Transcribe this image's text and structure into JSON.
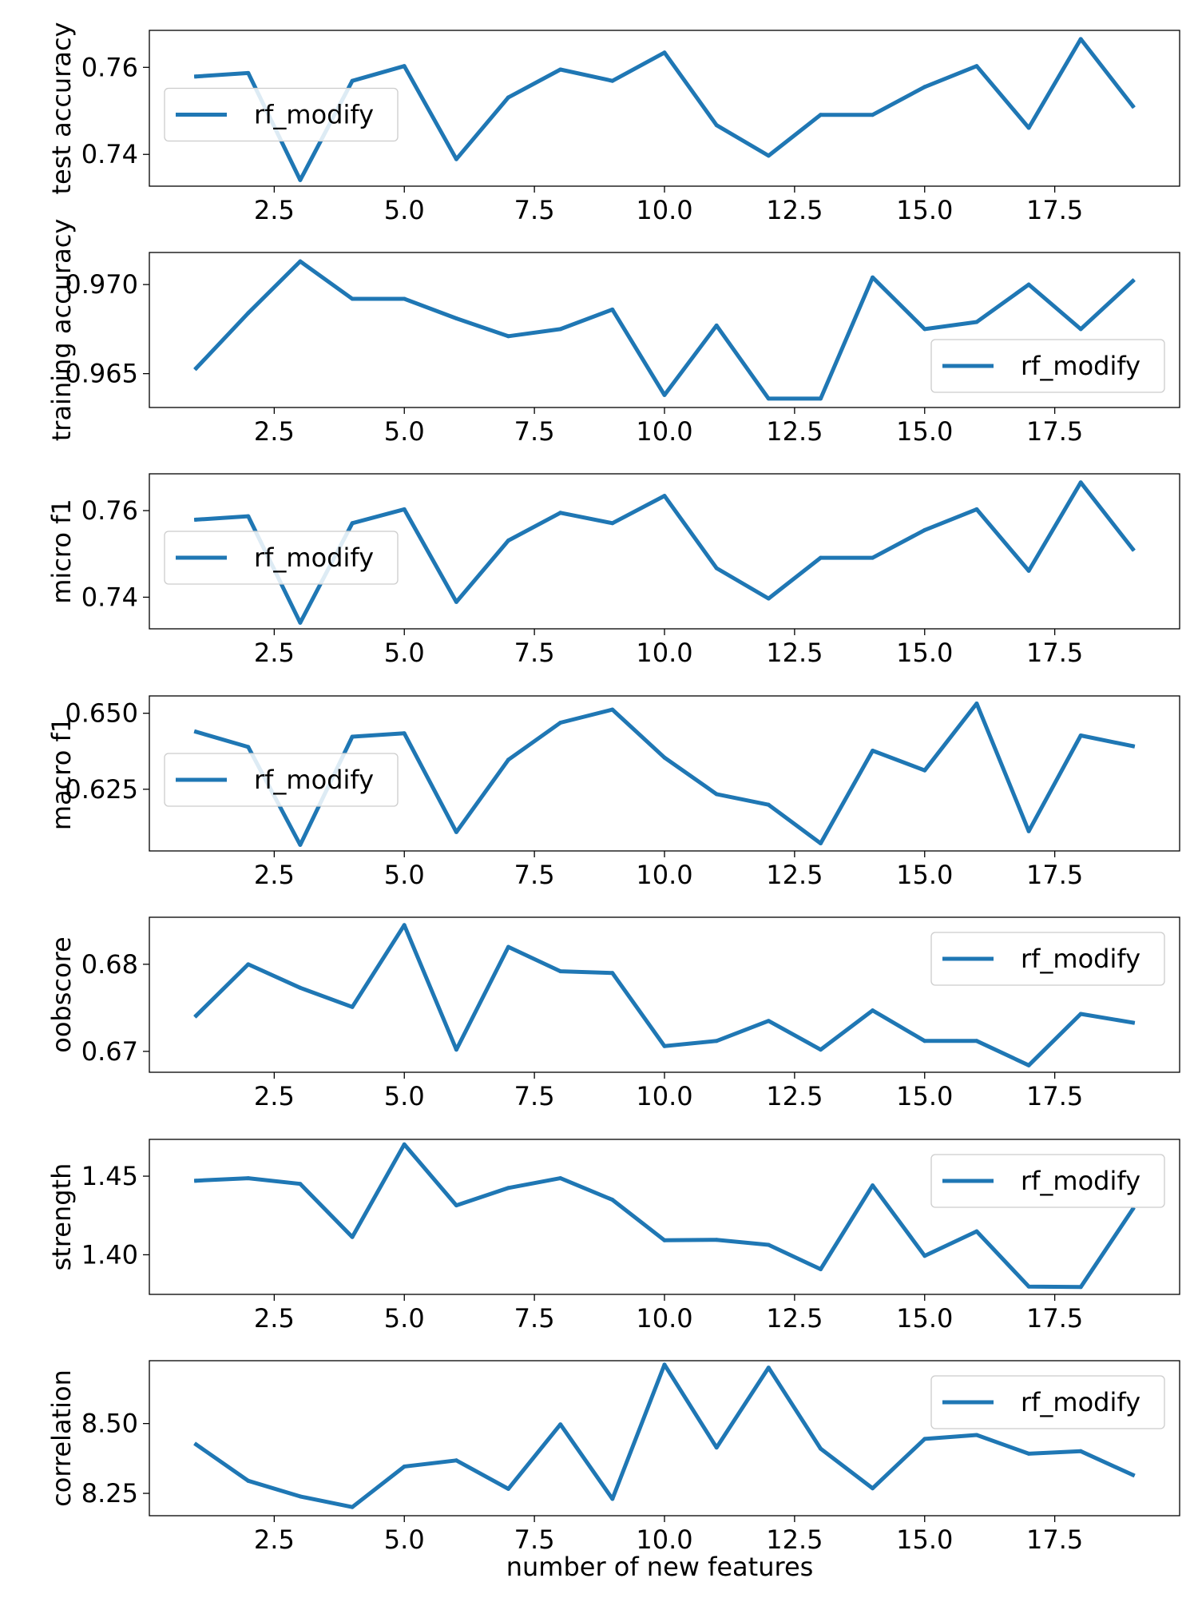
{
  "figure": {
    "xlabel": "number of new features",
    "x_ticks": [
      "2.5",
      "5.0",
      "7.5",
      "10.0",
      "12.5",
      "15.0",
      "17.5"
    ]
  },
  "colors": {
    "series": "#1f77b4",
    "axes": "#000000",
    "legend_border": "#cccccc"
  },
  "chart_data": [
    {
      "type": "line",
      "ylabel": "test accuracy",
      "xlim": [
        0.1,
        19.9
      ],
      "ylim": [
        0.7327,
        0.7685
      ],
      "yticks": [
        0.74,
        0.76
      ],
      "ytick_labels": [
        "0.74",
        "0.76"
      ],
      "legend_position": "center-left",
      "series": [
        {
          "name": "rf_modify",
          "x": [
            1,
            2,
            3,
            4,
            5,
            6,
            7,
            8,
            9,
            10,
            11,
            12,
            13,
            14,
            15,
            16,
            17,
            18,
            19
          ],
          "values": [
            0.7579,
            0.7587,
            0.7341,
            0.7569,
            0.7603,
            0.7389,
            0.7531,
            0.7595,
            0.7569,
            0.7634,
            0.7467,
            0.7397,
            0.7491,
            0.7491,
            0.7555,
            0.7603,
            0.7461,
            0.7665,
            0.7511
          ]
        }
      ]
    },
    {
      "type": "line",
      "ylabel": "training accuracy",
      "xlim": [
        0.1,
        19.9
      ],
      "ylim": [
        0.9631,
        0.9718
      ],
      "yticks": [
        0.965,
        0.97
      ],
      "ytick_labels": [
        "0.965",
        "0.970"
      ],
      "legend_position": "lower-right",
      "series": [
        {
          "name": "rf_modify",
          "x": [
            1,
            2,
            3,
            4,
            5,
            6,
            7,
            8,
            9,
            10,
            11,
            12,
            13,
            14,
            15,
            16,
            17,
            18,
            19
          ],
          "values": [
            0.9653,
            0.9684,
            0.9713,
            0.9692,
            0.9692,
            0.9681,
            0.9671,
            0.9675,
            0.9686,
            0.9638,
            0.9677,
            0.9636,
            0.9636,
            0.9704,
            0.9675,
            0.9679,
            0.97,
            0.9675,
            0.9702
          ]
        }
      ]
    },
    {
      "type": "line",
      "ylabel": "micro f1",
      "xlim": [
        0.1,
        19.9
      ],
      "ylim": [
        0.7327,
        0.7685
      ],
      "yticks": [
        0.74,
        0.76
      ],
      "ytick_labels": [
        "0.74",
        "0.76"
      ],
      "legend_position": "center-left",
      "series": [
        {
          "name": "rf_modify",
          "x": [
            1,
            2,
            3,
            4,
            5,
            6,
            7,
            8,
            9,
            10,
            11,
            12,
            13,
            14,
            15,
            16,
            17,
            18,
            19
          ],
          "values": [
            0.7579,
            0.7587,
            0.7341,
            0.7571,
            0.7603,
            0.7389,
            0.7531,
            0.7595,
            0.7571,
            0.7634,
            0.7467,
            0.7397,
            0.7491,
            0.7491,
            0.7555,
            0.7603,
            0.7461,
            0.7665,
            0.7511
          ]
        }
      ]
    },
    {
      "type": "line",
      "ylabel": "macro f1",
      "xlim": [
        0.1,
        19.9
      ],
      "ylim": [
        0.6047,
        0.6557
      ],
      "yticks": [
        0.625,
        0.65
      ],
      "ytick_labels": [
        "0.625",
        "0.650"
      ],
      "legend_position": "center-left",
      "series": [
        {
          "name": "rf_modify",
          "x": [
            1,
            2,
            3,
            4,
            5,
            6,
            7,
            8,
            9,
            10,
            11,
            12,
            13,
            14,
            15,
            16,
            17,
            18,
            19
          ],
          "values": [
            0.6439,
            0.6389,
            0.6067,
            0.6423,
            0.6434,
            0.6109,
            0.6347,
            0.6469,
            0.6512,
            0.6354,
            0.6234,
            0.6199,
            0.6072,
            0.6377,
            0.6312,
            0.6532,
            0.6112,
            0.6427,
            0.6392
          ]
        }
      ]
    },
    {
      "type": "line",
      "ylabel": "oobscore",
      "xlim": [
        0.1,
        19.9
      ],
      "ylim": [
        0.6676,
        0.6854
      ],
      "yticks": [
        0.67,
        0.68
      ],
      "ytick_labels": [
        "0.67",
        "0.68"
      ],
      "legend_position": "upper-right",
      "series": [
        {
          "name": "rf_modify",
          "x": [
            1,
            2,
            3,
            4,
            5,
            6,
            7,
            8,
            9,
            10,
            11,
            12,
            13,
            14,
            15,
            16,
            17,
            18,
            19
          ],
          "values": [
            0.6741,
            0.68,
            0.6773,
            0.6751,
            0.6845,
            0.6702,
            0.682,
            0.6792,
            0.679,
            0.6706,
            0.6712,
            0.6735,
            0.6702,
            0.6747,
            0.6712,
            0.6712,
            0.6684,
            0.6743,
            0.6733
          ]
        }
      ]
    },
    {
      "type": "line",
      "ylabel": "strength",
      "xlim": [
        0.1,
        19.9
      ],
      "ylim": [
        1.3748,
        1.4734
      ],
      "yticks": [
        1.4,
        1.45
      ],
      "ytick_labels": [
        "1.40",
        "1.45"
      ],
      "legend_position": "upper-right",
      "series": [
        {
          "name": "rf_modify",
          "x": [
            1,
            2,
            3,
            4,
            5,
            6,
            7,
            8,
            9,
            10,
            11,
            12,
            13,
            14,
            15,
            16,
            17,
            18,
            19
          ],
          "values": [
            1.4471,
            1.4487,
            1.4451,
            1.4113,
            1.4702,
            1.4314,
            1.4425,
            1.4487,
            1.435,
            1.4092,
            1.4095,
            1.4063,
            1.3908,
            1.4441,
            1.3993,
            1.4149,
            1.3798,
            1.3795,
            1.4291
          ]
        }
      ]
    },
    {
      "type": "line",
      "ylabel": "correlation",
      "xlim": [
        0.1,
        19.9
      ],
      "ylim": [
        8.17,
        8.725
      ],
      "yticks": [
        8.25,
        8.5
      ],
      "ytick_labels": [
        "8.25",
        "8.50"
      ],
      "legend_position": "upper-right",
      "series": [
        {
          "name": "rf_modify",
          "x": [
            1,
            2,
            3,
            4,
            5,
            6,
            7,
            8,
            9,
            10,
            11,
            12,
            13,
            14,
            15,
            16,
            17,
            18,
            19
          ],
          "values": [
            8.425,
            8.295,
            8.239,
            8.201,
            8.346,
            8.368,
            8.266,
            8.497,
            8.23,
            8.711,
            8.414,
            8.7,
            8.41,
            8.268,
            8.445,
            8.459,
            8.392,
            8.401,
            8.316
          ]
        }
      ]
    }
  ]
}
